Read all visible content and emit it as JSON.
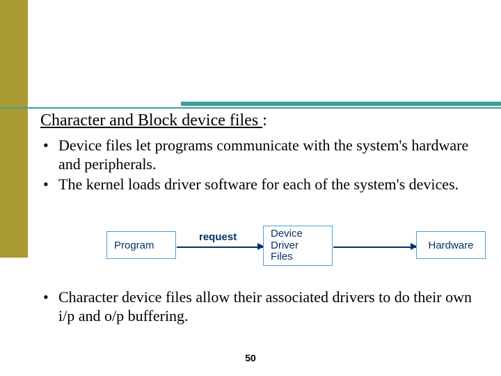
{
  "accent": {
    "gold": "#aa9b32",
    "teal": "#3b9e98",
    "nodeBorder": "#48a0dc",
    "ink": "#003366"
  },
  "heading": {
    "underlined": "Character and Block device files ",
    "suffix": ":"
  },
  "bullets_top": [
    "Device files let programs communicate with the system's hardware and peripherals.",
    "The kernel loads driver software for each of the system's devices."
  ],
  "diagram": {
    "nodes": {
      "program": "Program",
      "driver": "Device\nDriver\nFiles",
      "hardware": "Hardware"
    },
    "edge_label": "request"
  },
  "bullets_bottom": [
    "Character device files allow their associated drivers to do their  own i/p and o/p buffering."
  ],
  "page_number": "50"
}
